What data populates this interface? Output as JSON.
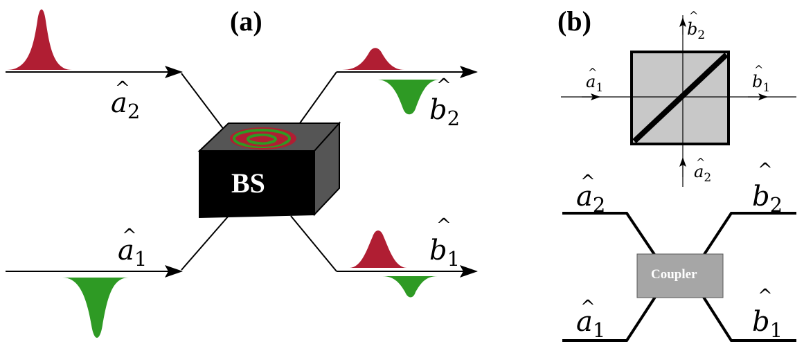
{
  "panels": {
    "a": {
      "label": "(a)"
    },
    "b": {
      "label": "(b)"
    }
  },
  "operators": {
    "a1": {
      "base": "a",
      "sub": "1"
    },
    "a2": {
      "base": "a",
      "sub": "2"
    },
    "b1": {
      "base": "b",
      "sub": "1"
    },
    "b2": {
      "base": "b",
      "sub": "2"
    }
  },
  "bs_label": "BS",
  "coupler_label": "Coupler",
  "colors": {
    "pulse_red": "#b01e33",
    "pulse_green": "#2e9a24",
    "box_front": "#000000",
    "box_side": "#555555",
    "cube_fill": "#c8c8c8",
    "coupler_fill": "#a6a6a6"
  }
}
